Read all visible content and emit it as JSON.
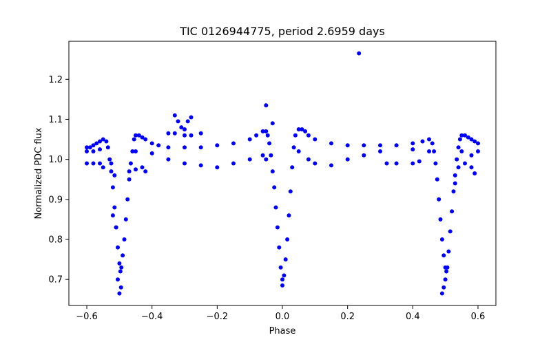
{
  "chart_data": {
    "type": "scatter",
    "title": "TIC 0126944775, period 2.6959 days",
    "xlabel": "Phase",
    "ylabel": "Normalized PDC flux",
    "xlim": [
      -0.655,
      0.655
    ],
    "ylim": [
      0.635,
      1.295
    ],
    "xticks": [
      -0.6,
      -0.4,
      -0.2,
      0.0,
      0.2,
      0.4,
      0.6
    ],
    "xtick_labels": [
      "−0.6",
      "−0.4",
      "−0.2",
      "0.0",
      "0.2",
      "0.4",
      "0.6"
    ],
    "yticks": [
      0.7,
      0.8,
      0.9,
      1.0,
      1.1,
      1.2
    ],
    "ytick_labels": [
      "0.7",
      "0.8",
      "0.9",
      "1.0",
      "1.1",
      "1.2"
    ],
    "grid": false,
    "legend": "none",
    "marker_color": "#0000ff",
    "series": [
      {
        "values_note": "",
        "points": [
          [
            -0.6,
            1.03
          ],
          [
            -0.59,
            1.03
          ],
          [
            -0.58,
            1.035
          ],
          [
            -0.57,
            1.04
          ],
          [
            -0.56,
            1.045
          ],
          [
            -0.55,
            1.05
          ],
          [
            -0.54,
            1.045
          ],
          [
            -0.535,
            1.03
          ],
          [
            -0.53,
            1.0
          ],
          [
            -0.525,
            0.97
          ],
          [
            -0.52,
            0.93
          ],
          [
            -0.515,
            0.88
          ],
          [
            -0.51,
            0.83
          ],
          [
            -0.505,
            0.78
          ],
          [
            -0.5,
            0.74
          ],
          [
            -0.497,
            0.72
          ],
          [
            -0.494,
            0.73
          ],
          [
            -0.49,
            0.76
          ],
          [
            -0.485,
            0.8
          ],
          [
            -0.48,
            0.85
          ],
          [
            -0.475,
            0.9
          ],
          [
            -0.47,
            0.95
          ],
          [
            -0.465,
            0.99
          ],
          [
            -0.46,
            1.02
          ],
          [
            -0.455,
            1.05
          ],
          [
            -0.45,
            1.06
          ],
          [
            -0.44,
            1.06
          ],
          [
            -0.43,
            1.055
          ],
          [
            -0.42,
            1.05
          ],
          [
            -0.4,
            1.04
          ],
          [
            -0.38,
            1.035
          ],
          [
            -0.35,
            1.03
          ],
          [
            -0.3,
            1.03
          ],
          [
            -0.25,
            1.03
          ],
          [
            -0.2,
            1.035
          ],
          [
            -0.15,
            1.04
          ],
          [
            -0.1,
            1.05
          ],
          [
            -0.08,
            1.06
          ],
          [
            -0.06,
            1.07
          ],
          [
            -0.05,
            1.07
          ],
          [
            -0.045,
            1.06
          ],
          [
            -0.04,
            1.04
          ],
          [
            -0.035,
            1.01
          ],
          [
            -0.03,
            0.97
          ],
          [
            -0.025,
            0.93
          ],
          [
            -0.02,
            0.88
          ],
          [
            -0.015,
            0.83
          ],
          [
            -0.01,
            0.78
          ],
          [
            -0.005,
            0.73
          ],
          [
            0.0,
            0.7
          ],
          [
            0.005,
            0.71
          ],
          [
            0.01,
            0.75
          ],
          [
            0.015,
            0.8
          ],
          [
            0.02,
            0.86
          ],
          [
            0.025,
            0.92
          ],
          [
            0.03,
            0.98
          ],
          [
            0.035,
            1.03
          ],
          [
            0.04,
            1.06
          ],
          [
            0.05,
            1.075
          ],
          [
            0.06,
            1.075
          ],
          [
            0.07,
            1.07
          ],
          [
            0.08,
            1.06
          ],
          [
            0.1,
            1.05
          ],
          [
            0.15,
            1.04
          ],
          [
            0.2,
            1.035
          ],
          [
            0.25,
            1.035
          ],
          [
            0.3,
            1.035
          ],
          [
            0.35,
            1.035
          ],
          [
            0.4,
            1.04
          ],
          [
            0.43,
            1.045
          ],
          [
            0.45,
            1.05
          ],
          [
            0.46,
            1.04
          ],
          [
            0.465,
            1.02
          ],
          [
            0.47,
            0.99
          ],
          [
            0.475,
            0.95
          ],
          [
            0.48,
            0.9
          ],
          [
            0.485,
            0.85
          ],
          [
            0.49,
            0.8
          ],
          [
            0.495,
            0.76
          ],
          [
            0.5,
            0.73
          ],
          [
            0.503,
            0.72
          ],
          [
            0.506,
            0.73
          ],
          [
            0.51,
            0.77
          ],
          [
            0.515,
            0.82
          ],
          [
            0.52,
            0.87
          ],
          [
            0.525,
            0.92
          ],
          [
            0.53,
            0.96
          ],
          [
            0.535,
            1.0
          ],
          [
            0.54,
            1.03
          ],
          [
            0.545,
            1.05
          ],
          [
            0.55,
            1.06
          ],
          [
            0.56,
            1.06
          ],
          [
            0.57,
            1.055
          ],
          [
            0.58,
            1.05
          ],
          [
            0.59,
            1.045
          ],
          [
            0.6,
            1.04
          ],
          [
            -0.6,
            1.02
          ],
          [
            -0.58,
            1.02
          ],
          [
            -0.56,
            1.025
          ],
          [
            -0.45,
            1.02
          ],
          [
            -0.4,
            1.015
          ],
          [
            -0.35,
            1.0
          ],
          [
            -0.3,
            0.99
          ],
          [
            -0.25,
            0.985
          ],
          [
            -0.2,
            0.98
          ],
          [
            -0.15,
            0.99
          ],
          [
            -0.1,
            1.0
          ],
          [
            -0.06,
            1.01
          ],
          [
            -0.05,
            1.0
          ],
          [
            0.05,
            1.02
          ],
          [
            0.08,
            1.0
          ],
          [
            0.1,
            0.99
          ],
          [
            0.15,
            0.985
          ],
          [
            0.2,
            1.0
          ],
          [
            0.25,
            1.01
          ],
          [
            0.3,
            1.02
          ],
          [
            0.4,
            1.025
          ],
          [
            0.45,
            1.02
          ],
          [
            0.55,
            1.02
          ],
          [
            0.58,
            1.01
          ],
          [
            0.6,
            1.02
          ],
          [
            -0.6,
            0.99
          ],
          [
            -0.58,
            0.99
          ],
          [
            -0.56,
            0.99
          ],
          [
            -0.55,
            0.98
          ],
          [
            -0.45,
            0.975
          ],
          [
            -0.42,
            0.97
          ],
          [
            -0.35,
            1.065
          ],
          [
            -0.33,
            1.065
          ],
          [
            -0.3,
            1.06
          ],
          [
            -0.28,
            1.06
          ],
          [
            -0.33,
            1.11
          ],
          [
            -0.32,
            1.095
          ],
          [
            -0.31,
            1.08
          ],
          [
            -0.29,
            1.095
          ],
          [
            -0.28,
            1.105
          ],
          [
            -0.3,
            1.075
          ],
          [
            -0.25,
            1.065
          ],
          [
            -0.05,
            1.135
          ],
          [
            -0.03,
            1.09
          ],
          [
            0.235,
            1.265
          ],
          [
            0.32,
            0.99
          ],
          [
            0.35,
            0.99
          ],
          [
            0.4,
            0.99
          ],
          [
            0.42,
            0.995
          ],
          [
            0.56,
            0.99
          ],
          [
            0.58,
            0.98
          ],
          [
            0.59,
            0.965
          ],
          [
            -0.52,
            0.86
          ],
          [
            -0.51,
            0.83
          ],
          [
            -0.505,
            0.7
          ],
          [
            -0.5,
            0.665
          ],
          [
            -0.495,
            0.68
          ],
          [
            0.0,
            0.685
          ],
          [
            0.5,
            0.7
          ],
          [
            0.49,
            0.665
          ],
          [
            0.495,
            0.68
          ],
          [
            -0.515,
            0.96
          ],
          [
            -0.525,
            0.99
          ],
          [
            0.53,
            0.94
          ],
          [
            0.54,
            0.98
          ],
          [
            -0.47,
            0.97
          ],
          [
            -0.43,
            0.98
          ]
        ]
      }
    ]
  }
}
